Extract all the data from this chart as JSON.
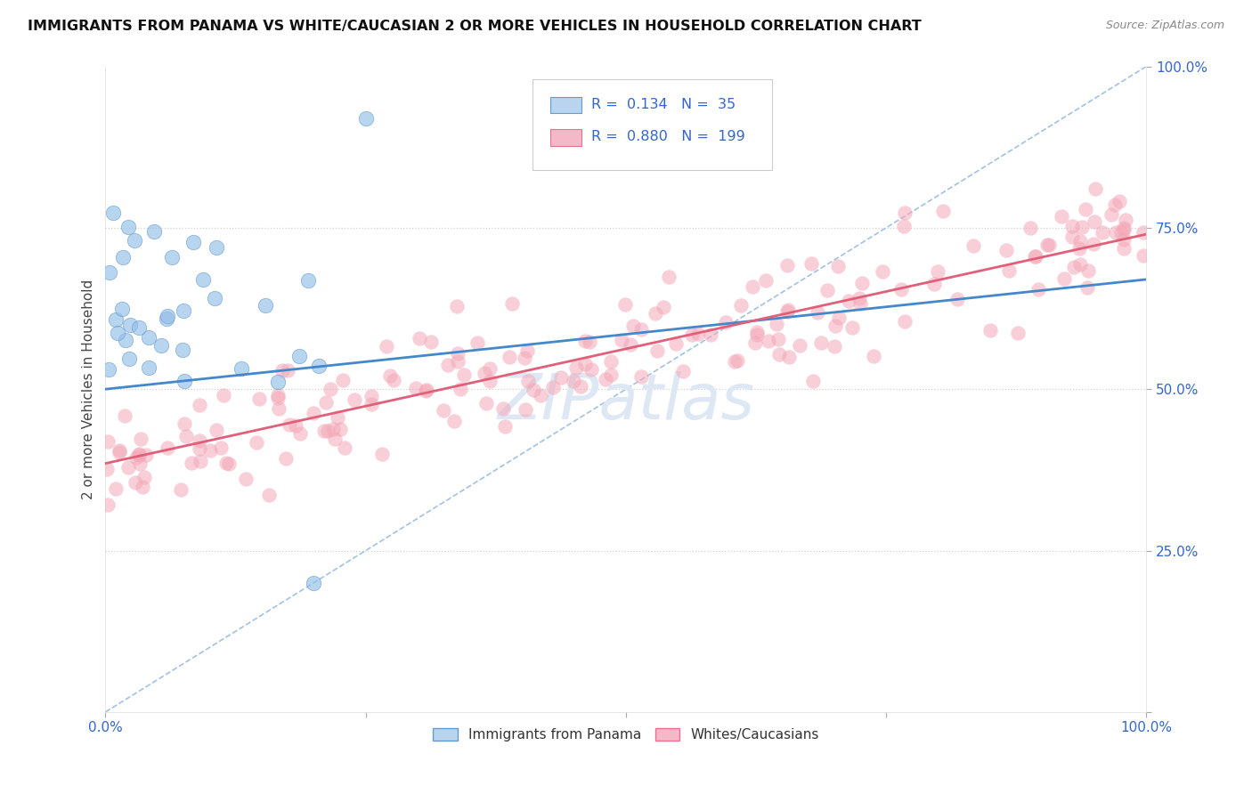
{
  "title": "IMMIGRANTS FROM PANAMA VS WHITE/CAUCASIAN 2 OR MORE VEHICLES IN HOUSEHOLD CORRELATION CHART",
  "source": "Source: ZipAtlas.com",
  "ylabel": "2 or more Vehicles in Household",
  "xlim": [
    0,
    1
  ],
  "ylim": [
    0,
    1
  ],
  "blue_color": "#92bfe8",
  "blue_edge": "#6699cc",
  "pink_color": "#f4a8b8",
  "pink_edge": "#e87090",
  "trend_blue": "#4488cc",
  "trend_pink": "#e0607a",
  "ref_line_color": "#99bbdd",
  "grid_color": "#cccccc",
  "tick_color": "#3366cc",
  "title_color": "#111111",
  "source_color": "#888888",
  "ylabel_color": "#444444",
  "watermark_color": "#dde8f4",
  "legend_border": "#cccccc",
  "blue_trend_start_x": 0.0,
  "blue_trend_start_y": 0.5,
  "blue_trend_end_x": 1.0,
  "blue_trend_end_y": 0.67,
  "pink_trend_start_x": 0.0,
  "pink_trend_start_y": 0.385,
  "pink_trend_end_x": 1.0,
  "pink_trend_end_y": 0.74,
  "blue_N": 35,
  "pink_N": 199
}
